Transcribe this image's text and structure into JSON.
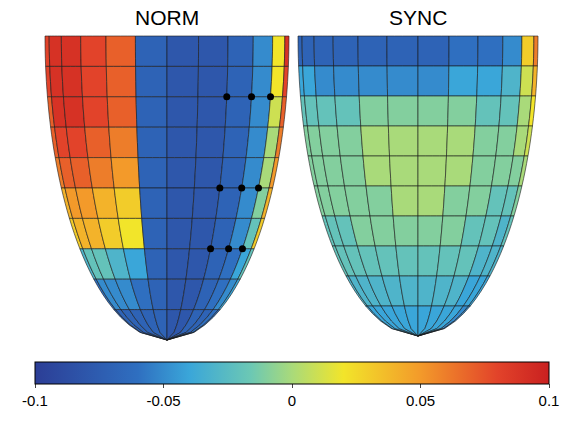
{
  "chart_data": {
    "type": "surface_map",
    "colorbar": {
      "range": [
        -0.1,
        0.1
      ],
      "ticks": [
        -0.1,
        -0.05,
        0,
        0.05,
        0.1
      ]
    },
    "panels": [
      {
        "title": "NORM",
        "cells": [
          [
            0.08,
            0.09,
            0.09,
            0.08,
            0.07,
            -0.07,
            -0.08,
            -0.08,
            -0.07,
            -0.05,
            0.02,
            0.09
          ],
          [
            0.08,
            0.09,
            0.09,
            0.08,
            0.07,
            -0.07,
            -0.08,
            -0.08,
            -0.07,
            -0.05,
            0.02,
            0.08
          ],
          [
            0.07,
            0.09,
            0.09,
            0.08,
            0.07,
            -0.07,
            -0.08,
            -0.08,
            -0.07,
            -0.05,
            0.01,
            0.07
          ],
          [
            0.07,
            0.08,
            0.08,
            0.07,
            0.06,
            -0.07,
            -0.08,
            -0.08,
            -0.07,
            -0.05,
            0.0,
            0.06
          ],
          [
            0.06,
            0.07,
            0.07,
            0.06,
            0.05,
            -0.07,
            -0.08,
            -0.08,
            -0.07,
            -0.05,
            0.0,
            0.05
          ],
          [
            0.04,
            0.05,
            0.05,
            0.04,
            0.03,
            -0.07,
            -0.08,
            -0.08,
            -0.07,
            -0.05,
            -0.01,
            0.04
          ],
          [
            0.03,
            0.04,
            0.04,
            0.03,
            0.02,
            -0.07,
            -0.08,
            -0.08,
            -0.07,
            -0.05,
            -0.02,
            0.03
          ],
          [
            -0.03,
            -0.02,
            -0.02,
            -0.03,
            -0.04,
            -0.07,
            -0.08,
            -0.08,
            -0.07,
            -0.06,
            -0.04,
            -0.02
          ],
          [
            -0.06,
            -0.05,
            -0.05,
            -0.05,
            -0.06,
            -0.07,
            -0.08,
            -0.08,
            -0.07,
            -0.06,
            -0.05,
            -0.04
          ],
          [
            -0.07,
            -0.07,
            -0.07,
            -0.07,
            -0.07,
            -0.07,
            -0.08,
            -0.08,
            -0.07,
            -0.07,
            -0.06,
            -0.06
          ]
        ],
        "marked_nodes": [
          [
            2,
            8
          ],
          [
            2,
            9
          ],
          [
            2,
            10
          ],
          [
            5,
            8
          ],
          [
            5,
            9
          ],
          [
            5,
            10
          ],
          [
            7,
            8
          ],
          [
            7,
            9
          ],
          [
            7,
            10
          ]
        ]
      },
      {
        "title": "SYNC",
        "cells": [
          [
            -0.07,
            -0.07,
            -0.07,
            -0.07,
            -0.07,
            -0.07,
            -0.07,
            -0.06,
            -0.06,
            -0.05,
            0.03,
            0.06
          ],
          [
            -0.04,
            -0.04,
            -0.05,
            -0.05,
            -0.05,
            -0.05,
            -0.05,
            -0.04,
            -0.04,
            -0.03,
            0.01,
            0.04
          ],
          [
            -0.02,
            -0.02,
            -0.02,
            -0.02,
            -0.01,
            -0.01,
            -0.01,
            -0.01,
            -0.02,
            -0.02,
            0.0,
            0.02
          ],
          [
            -0.01,
            -0.01,
            -0.01,
            -0.01,
            0.0,
            0.0,
            0.0,
            0.0,
            -0.01,
            -0.01,
            0.0,
            0.01
          ],
          [
            -0.01,
            -0.01,
            -0.01,
            -0.01,
            0.0,
            0.0,
            0.0,
            0.0,
            -0.01,
            -0.01,
            -0.01,
            0.0
          ],
          [
            -0.01,
            -0.01,
            -0.01,
            -0.01,
            -0.01,
            0.0,
            0.0,
            -0.01,
            -0.01,
            -0.02,
            -0.02,
            -0.01
          ],
          [
            -0.02,
            -0.02,
            -0.02,
            -0.01,
            -0.01,
            -0.01,
            -0.01,
            -0.01,
            -0.02,
            -0.02,
            -0.03,
            -0.02
          ],
          [
            -0.02,
            -0.02,
            -0.02,
            -0.02,
            -0.02,
            -0.02,
            -0.02,
            -0.02,
            -0.02,
            -0.03,
            -0.03,
            -0.03
          ],
          [
            -0.03,
            -0.03,
            -0.03,
            -0.03,
            -0.03,
            -0.03,
            -0.03,
            -0.03,
            -0.03,
            -0.04,
            -0.04,
            -0.04
          ],
          [
            -0.04,
            -0.04,
            -0.04,
            -0.04,
            -0.04,
            -0.04,
            -0.04,
            -0.04,
            -0.04,
            -0.04,
            -0.05,
            -0.05
          ]
        ]
      }
    ]
  }
}
